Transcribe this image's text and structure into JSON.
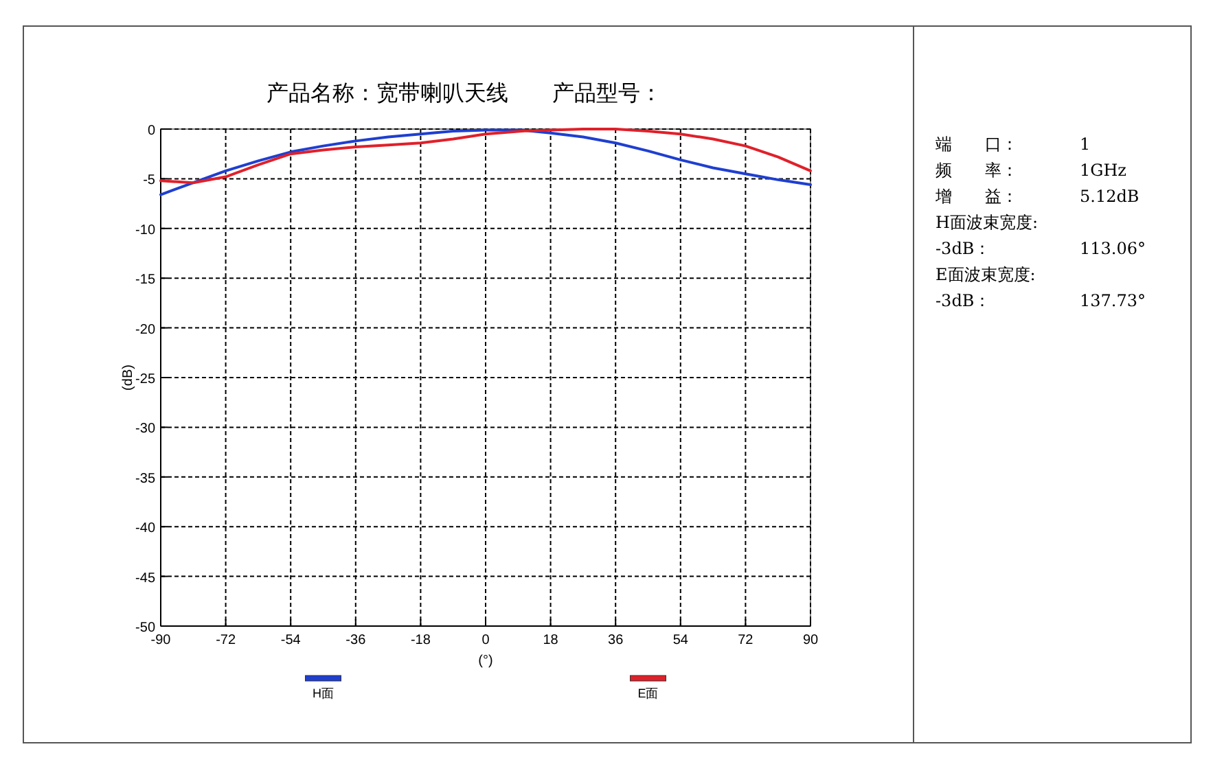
{
  "chart_data": {
    "type": "line",
    "title": "产品名称：宽带喇叭天线　　产品型号：",
    "xlabel": "(°)",
    "ylabel": "(dB)",
    "x": [
      -90,
      -81,
      -72,
      -63,
      -54,
      -45,
      -36,
      -27,
      -18,
      -9,
      0,
      10,
      18,
      27,
      36,
      45,
      54,
      63,
      72,
      81,
      90
    ],
    "series": [
      {
        "name": "H面",
        "color": "#1f3fd0",
        "values": [
          -6.6,
          -5.4,
          -4.2,
          -3.2,
          -2.3,
          -1.7,
          -1.2,
          -0.8,
          -0.5,
          -0.2,
          -0.1,
          -0.1,
          -0.4,
          -0.8,
          -1.4,
          -2.2,
          -3.1,
          -3.9,
          -4.5,
          -5.1,
          -5.6
        ]
      },
      {
        "name": "E面",
        "color": "#e0202a",
        "values": [
          -5.2,
          -5.4,
          -4.8,
          -3.6,
          -2.5,
          -2.1,
          -1.8,
          -1.6,
          -1.4,
          -1.0,
          -0.5,
          -0.2,
          -0.1,
          0,
          0,
          -0.2,
          -0.5,
          -1.0,
          -1.7,
          -2.8,
          -4.2
        ]
      }
    ],
    "xlim": [
      -90,
      90
    ],
    "xticks": [
      -90,
      -72,
      -54,
      -36,
      -18,
      0,
      18,
      36,
      54,
      72,
      90
    ],
    "ylim": [
      -50,
      0
    ],
    "yticks": [
      -50,
      -45,
      -40,
      -35,
      -30,
      -25,
      -20,
      -15,
      -10,
      -5,
      0
    ],
    "grid": true,
    "legend": "bottom",
    "annotations": [
      "端　　口：\t1",
      "频　　率：\t1GHz",
      "增　　益：\t5.12dB",
      "H面波束宽度:",
      "-3dB：\t113.06°",
      "E面波束宽度:",
      "-3dB：\t137.73°"
    ]
  }
}
